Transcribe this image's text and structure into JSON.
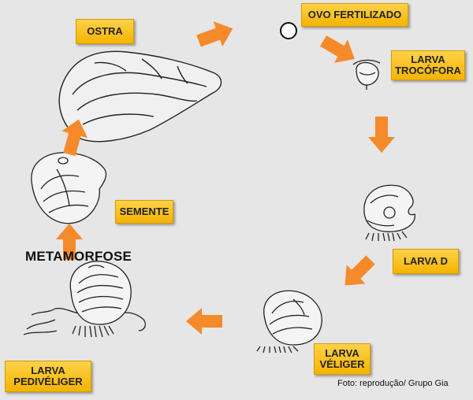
{
  "stages": {
    "ostra": "OSTRA",
    "ovo_fertilizado": "OVO FERTILIZADO",
    "larva_trocofora": [
      "LARVA",
      "TROCÓFORA"
    ],
    "larva_d": "LARVA D",
    "larva_veliger": [
      "LARVA",
      "VÉLIGER"
    ],
    "larva_pedivelinger": [
      "LARVA",
      "PEDIVÉLIGER"
    ],
    "semente": "SEMENTE",
    "metamorfose": "METAMORFOSE"
  },
  "credit": "Foto: reprodução/ Grupo Gia",
  "colors": {
    "label_fill": "#f4b400",
    "arrow": "#f58a2b",
    "background": "#e6e6e6"
  }
}
